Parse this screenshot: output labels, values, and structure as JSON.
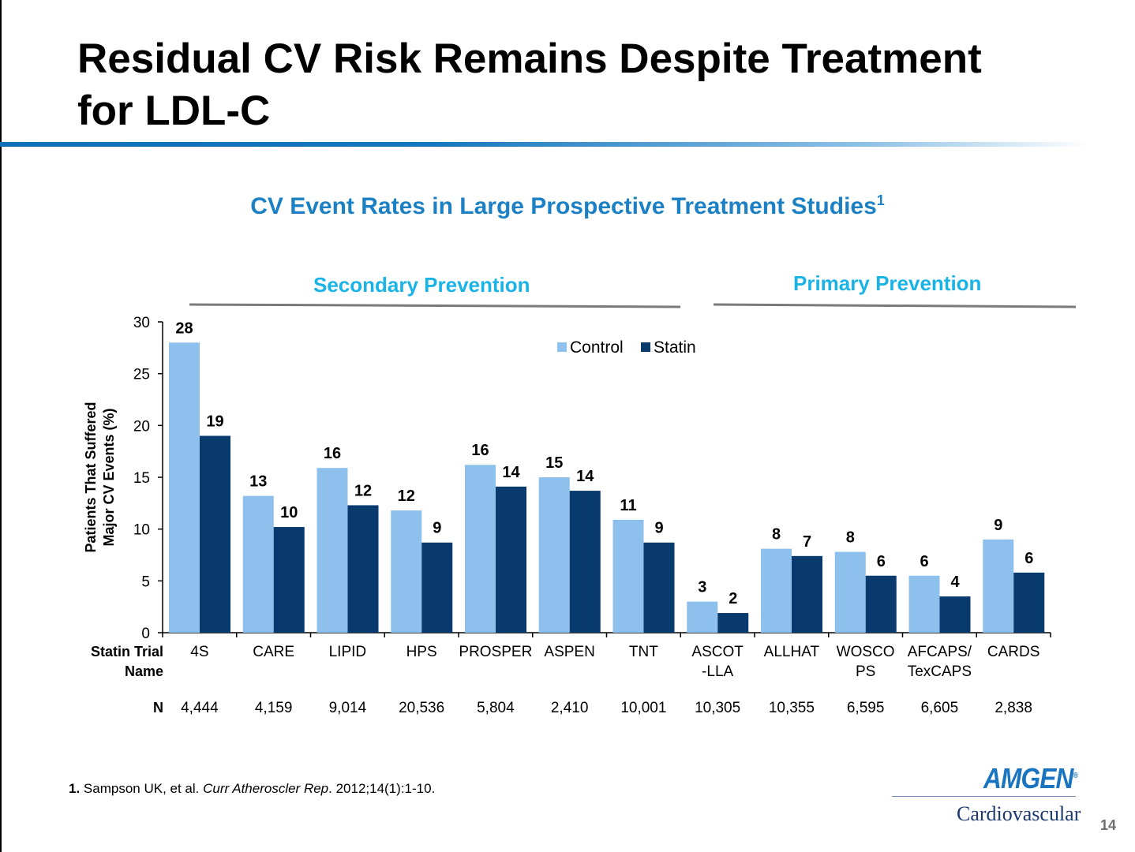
{
  "slide": {
    "title_line1": "Residual CV Risk Remains Despite Treatment",
    "title_line2": "for LDL-C",
    "page_number": "14",
    "footnote": {
      "num": "1.",
      "authors": " Sampson UK, et al. ",
      "journal": "Curr Atheroscler Rep",
      "details": ". 2012;14(1):1-10."
    },
    "logo": {
      "brand": "AMGEN",
      "reg": "®",
      "division": "Cardiovascular"
    },
    "colors": {
      "title_rule": "#1577bd",
      "chart_title": "#1b80c4",
      "section_label": "#1ab3e6"
    }
  },
  "chart_data": {
    "type": "bar",
    "title": "CV Event Rates in Large Prospective Treatment Studies",
    "title_sup": "1",
    "ylabel_line1": "Patients That Suffered",
    "ylabel_line2": "Major CV Events (%)",
    "ylim": [
      0,
      30
    ],
    "yticks": [
      0,
      5,
      10,
      15,
      20,
      25,
      30
    ],
    "grid": false,
    "legend_placement": "top-center",
    "category_axis_label": [
      "Statin Trial",
      "Name"
    ],
    "n_label": "N",
    "categories": [
      [
        "4S"
      ],
      [
        "CARE"
      ],
      [
        "LIPID"
      ],
      [
        "HPS"
      ],
      [
        "PROSPER"
      ],
      [
        "ASPEN"
      ],
      [
        "TNT"
      ],
      [
        "ASCOT",
        "-LLA"
      ],
      [
        "ALLHAT"
      ],
      [
        "WOSCO",
        "PS"
      ],
      [
        "AFCAPS/",
        "TexCAPS"
      ],
      [
        "CARDS"
      ]
    ],
    "n_values": [
      "4,444",
      "4,159",
      "9,014",
      "20,536",
      "5,804",
      "2,410",
      "10,001",
      "10,305",
      "10,355",
      "6,595",
      "6,605",
      "2,838"
    ],
    "series": [
      {
        "name": "Control",
        "color": "#8dc0ec",
        "values": [
          28,
          13.2,
          15.9,
          11.8,
          16.2,
          15,
          10.9,
          3,
          8.1,
          7.8,
          5.5,
          9
        ],
        "labels": [
          "28",
          "13",
          "16",
          "12",
          "16",
          "15",
          "11",
          "3",
          "8",
          "8",
          "6",
          "9"
        ]
      },
      {
        "name": "Statin",
        "color": "#083a6e",
        "values": [
          19,
          10.2,
          12.3,
          8.7,
          14.1,
          13.7,
          8.7,
          1.9,
          7.4,
          5.5,
          3.5,
          5.8
        ],
        "labels": [
          "19",
          "10",
          "12",
          "9",
          "14",
          "14",
          "9",
          "2",
          "7",
          "6",
          "4",
          "6"
        ]
      }
    ],
    "groups": [
      {
        "label": "Secondary Prevention",
        "from": 0,
        "to": 6
      },
      {
        "label": "Primary Prevention",
        "from": 7,
        "to": 11
      }
    ]
  }
}
